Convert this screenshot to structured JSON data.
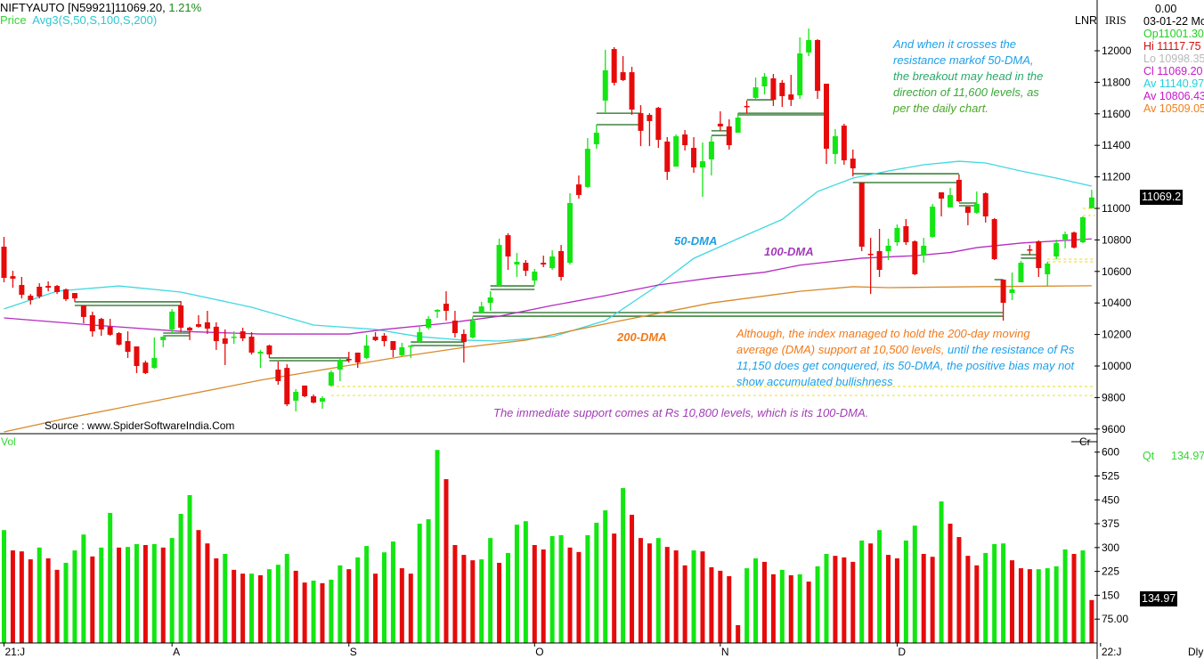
{
  "header": {
    "symbol": "NIFTYAUTO [N59921]11069.20,",
    "change": "1.21%",
    "price_label": "Price",
    "avg_label": "Avg3(S,50,S,100,S,200)"
  },
  "right_panel": {
    "lnr": "LNR",
    "iris": "IRIS",
    "value_top": "0.00",
    "date": "03-01-22 Mo",
    "open": "Op11001.30",
    "high": "Hi 11117.75",
    "low": "Lo 10998.35",
    "close": "Cl 11069.20",
    "av50": "Av 11140.97",
    "av100": "Av 10806.43",
    "av200": "Av 10509.05",
    "price_tag": "11069.2",
    "cr": "Cr",
    "qt_label": "Qt",
    "qt_value": "134.97",
    "vol_tag": "134.97",
    "dly": "Dly"
  },
  "source": "Source : www.SpiderSoftwareIndia.Com",
  "vol_label": "Vol",
  "annotations": {
    "dma50": "50-DMA",
    "dma100": "100-DMA",
    "dma200": "200-DMA",
    "top_right": [
      "And when it crosses the",
      "resistance markof 50-DMA,",
      "the breakout may head in the",
      "direction of 11,600 levels, as",
      "per the daily chart."
    ],
    "support_orange_1": "Although, the index managed to hold the 200-day moving",
    "support_orange_2": "average (DMA) support at 10,500 levels,",
    "support_blue_2": " until the resistance of Rs",
    "support_blue_3": "11,150 does get conquered, its 50-DMA, the positive bias may not",
    "support_blue_4": "show accumulated bullishness",
    "immediate": "The immediate support comes at Rs 10,800 levels, which is its 100-DMA."
  },
  "colors": {
    "up": "#13e613",
    "down": "#e60b0b",
    "dma50": "#3fd8e0",
    "dma100": "#b52cc0",
    "dma200": "#d88a2a",
    "level": "#1d6b1d",
    "support": "#f0e040"
  },
  "chart_data": {
    "type": "candlestick",
    "title": "NIFTYAUTO [N59921]",
    "x_ticks": [
      {
        "index": 0,
        "label": "21:J"
      },
      {
        "index": 19,
        "label": "A"
      },
      {
        "index": 39,
        "label": "S"
      },
      {
        "index": 60,
        "label": "O"
      },
      {
        "index": 81,
        "label": "N"
      },
      {
        "index": 101,
        "label": "D"
      },
      {
        "index": 124,
        "label": "22:J"
      }
    ],
    "price_axis": {
      "ylim": [
        9600,
        12200
      ],
      "ticks": [
        12000,
        11800,
        11600,
        11400,
        11200,
        11000,
        10800,
        10600,
        10400,
        10200,
        10000,
        9800,
        9600
      ]
    },
    "volume_axis": {
      "ylim": [
        0,
        620
      ],
      "ticks": [
        "600",
        "525",
        "450",
        "375",
        "300",
        "225",
        "150",
        "75.00"
      ],
      "tick_values": [
        600,
        525,
        450,
        375,
        300,
        225,
        150,
        75
      ]
    },
    "ohlc": [
      [
        10757,
        10819,
        10531,
        10559
      ],
      [
        10570,
        10604,
        10497,
        10554
      ],
      [
        10514,
        10565,
        10429,
        10452
      ],
      [
        10446,
        10457,
        10390,
        10418
      ],
      [
        10503,
        10525,
        10429,
        10441
      ],
      [
        10508,
        10537,
        10474,
        10497
      ],
      [
        10508,
        10514,
        10457,
        10469
      ],
      [
        10486,
        10492,
        10412,
        10424
      ],
      [
        10463,
        10463,
        10407,
        10429
      ],
      [
        10384,
        10384,
        10271,
        10311
      ],
      [
        10322,
        10345,
        10186,
        10220
      ],
      [
        10299,
        10305,
        10192,
        10232
      ],
      [
        10249,
        10299,
        10192,
        10198
      ],
      [
        10209,
        10215,
        10130,
        10135
      ],
      [
        10158,
        10220,
        10051,
        10090
      ],
      [
        10124,
        10124,
        9955,
        10000
      ],
      [
        10022,
        10034,
        9949,
        9955
      ],
      [
        9988,
        10181,
        9983,
        10051
      ],
      [
        10164,
        10186,
        10119,
        10186
      ],
      [
        10232,
        10361,
        10209,
        10345
      ],
      [
        10384,
        10412,
        10215,
        10243
      ],
      [
        10243,
        10249,
        10164,
        10226
      ],
      [
        10265,
        10322,
        10243,
        10249
      ],
      [
        10277,
        10350,
        10203,
        10237
      ],
      [
        10249,
        10277,
        10102,
        10158
      ],
      [
        10175,
        10232,
        10006,
        10141
      ],
      [
        10181,
        10220,
        10141,
        10186
      ],
      [
        10220,
        10243,
        10158,
        10175
      ],
      [
        10186,
        10215,
        10073,
        10085
      ],
      [
        10079,
        10102,
        9988,
        10090
      ],
      [
        10130,
        10135,
        10051,
        10073
      ],
      [
        9977,
        10028,
        9881,
        9904
      ],
      [
        9988,
        10011,
        9746,
        9757
      ],
      [
        9780,
        9853,
        9712,
        9836
      ],
      [
        9876,
        9876,
        9802,
        9808
      ],
      [
        9808,
        9819,
        9763,
        9768
      ],
      [
        9774,
        9808,
        9729,
        9796
      ],
      [
        9876,
        9972,
        9870,
        9960
      ],
      [
        9977,
        10045,
        9904,
        10039
      ],
      [
        10045,
        10090,
        10022,
        10039
      ],
      [
        10085,
        10085,
        9988,
        10022
      ],
      [
        10051,
        10198,
        10045,
        10130
      ],
      [
        10186,
        10215,
        10158,
        10164
      ],
      [
        10192,
        10209,
        10124,
        10158
      ],
      [
        10158,
        10158,
        10056,
        10102
      ],
      [
        10068,
        10147,
        10062,
        10119
      ],
      [
        10124,
        10130,
        10051,
        10130
      ],
      [
        10152,
        10249,
        10147,
        10215
      ],
      [
        10243,
        10316,
        10232,
        10299
      ],
      [
        10345,
        10361,
        10305,
        10356
      ],
      [
        10395,
        10474,
        10288,
        10350
      ],
      [
        10288,
        10350,
        10181,
        10209
      ],
      [
        10203,
        10232,
        10022,
        10152
      ],
      [
        10181,
        10311,
        10175,
        10288
      ],
      [
        10339,
        10407,
        10333,
        10378
      ],
      [
        10401,
        10474,
        10350,
        10435
      ],
      [
        10508,
        10808,
        10503,
        10768
      ],
      [
        10830,
        10842,
        10610,
        10695
      ],
      [
        10644,
        10717,
        10565,
        10661
      ],
      [
        10655,
        10672,
        10570,
        10604
      ],
      [
        10542,
        10616,
        10514,
        10599
      ],
      [
        10655,
        10700,
        10627,
        10644
      ],
      [
        10621,
        10734,
        10610,
        10695
      ],
      [
        10729,
        10768,
        10542,
        10565
      ],
      [
        10655,
        11096,
        10644,
        11034
      ],
      [
        11152,
        11209,
        11062,
        11085
      ],
      [
        11136,
        11446,
        11130,
        11378
      ],
      [
        11407,
        11531,
        11378,
        11480
      ],
      [
        11684,
        12006,
        11604,
        11876
      ],
      [
        12011,
        12023,
        11780,
        11797
      ],
      [
        11864,
        11966,
        11808,
        11814
      ],
      [
        11864,
        11898,
        11593,
        11627
      ],
      [
        11604,
        11655,
        11395,
        11492
      ],
      [
        11593,
        11604,
        11395,
        11554
      ],
      [
        11638,
        11644,
        11384,
        11435
      ],
      [
        11424,
        11452,
        11181,
        11232
      ],
      [
        11265,
        11469,
        11265,
        11458
      ],
      [
        11469,
        11497,
        11367,
        11401
      ],
      [
        11384,
        11452,
        11226,
        11260
      ],
      [
        11260,
        11418,
        11073,
        11299
      ],
      [
        11311,
        11458,
        11209,
        11424
      ],
      [
        11537,
        11616,
        11492,
        11520
      ],
      [
        11520,
        11565,
        11373,
        11401
      ],
      [
        11480,
        11604,
        11480,
        11576
      ],
      [
        11650,
        11684,
        11604,
        11644
      ],
      [
        11701,
        11830,
        11689,
        11768
      ],
      [
        11774,
        11859,
        11723,
        11836
      ],
      [
        11825,
        11853,
        11650,
        11689
      ],
      [
        11797,
        11814,
        11644,
        11712
      ],
      [
        11723,
        11847,
        11650,
        11689
      ],
      [
        11717,
        12085,
        11695,
        11983
      ],
      [
        11989,
        12141,
        11966,
        12068
      ],
      [
        12068,
        12073,
        11695,
        11746
      ],
      [
        11791,
        11791,
        11282,
        11378
      ],
      [
        11345,
        11503,
        11282,
        11458
      ],
      [
        11525,
        11537,
        11277,
        11305
      ],
      [
        11316,
        11373,
        11203,
        11254
      ],
      [
        11164,
        11164,
        10729,
        10757
      ],
      [
        10712,
        10813,
        10457,
        10706
      ],
      [
        10729,
        10870,
        10565,
        10610
      ],
      [
        10729,
        10808,
        10672,
        10763
      ],
      [
        10785,
        10898,
        10763,
        10876
      ],
      [
        10887,
        10932,
        10768,
        10785
      ],
      [
        10791,
        10797,
        10576,
        10582
      ],
      [
        10700,
        10813,
        10655,
        10763
      ],
      [
        10819,
        11028,
        10813,
        11011
      ],
      [
        11102,
        11102,
        10949,
        11062
      ],
      [
        11006,
        11130,
        11006,
        11085
      ],
      [
        11181,
        11215,
        11039,
        11045
      ],
      [
        11011,
        11011,
        10893,
        10972
      ],
      [
        10972,
        11107,
        10966,
        11028
      ],
      [
        11096,
        11102,
        10910,
        10949
      ],
      [
        10932,
        10938,
        10672,
        10678
      ],
      [
        10548,
        10548,
        10288,
        10401
      ],
      [
        10463,
        10593,
        10418,
        10486
      ],
      [
        10531,
        10667,
        10531,
        10655
      ],
      [
        10740,
        10768,
        10706,
        10734
      ],
      [
        10791,
        10797,
        10565,
        10621
      ],
      [
        10582,
        10661,
        10508,
        10650
      ],
      [
        10695,
        10802,
        10678,
        10780
      ],
      [
        10802,
        10853,
        10746,
        10836
      ],
      [
        10847,
        10853,
        10746,
        10751
      ],
      [
        10785,
        10949,
        10780,
        10944
      ],
      [
        11001.3,
        11117.75,
        10998.35,
        11069.2
      ]
    ],
    "volume": [
      355,
      291,
      288,
      263,
      300,
      266,
      230,
      252,
      291,
      341,
      272,
      300,
      409,
      300,
      302,
      311,
      308,
      311,
      300,
      330,
      406,
      465,
      355,
      313,
      266,
      280,
      230,
      218,
      218,
      213,
      232,
      246,
      280,
      227,
      190,
      196,
      188,
      199,
      244,
      232,
      269,
      305,
      218,
      285,
      319,
      235,
      218,
      375,
      389,
      607,
      515,
      308,
      277,
      260,
      263,
      330,
      252,
      283,
      372,
      383,
      308,
      294,
      336,
      339,
      300,
      286,
      339,
      378,
      417,
      344,
      487,
      403,
      330,
      313,
      330,
      302,
      291,
      244,
      291,
      288,
      238,
      227,
      210,
      56,
      235,
      266,
      255,
      216,
      230,
      213,
      216,
      193,
      241,
      280,
      274,
      269,
      255,
      322,
      313,
      355,
      277,
      266,
      322,
      369,
      280,
      271,
      445,
      375,
      333,
      274,
      244,
      283,
      311,
      313,
      260,
      235,
      232,
      232,
      235,
      241,
      294,
      280,
      291,
      134.97
    ],
    "volume_colors": [
      "GRRRGRRGGG",
      "RGGRGGRGRG",
      "GGRRRGRRGR",
      "GGGRRGRGGR",
      "GGRGGRRGGG",
      "RRRRGGRGGG",
      "RRG",
      "GRRGGGR",
      "GRRRGRRRGR",
      "RRRRGGRRGR",
      "GRGGRRRGRG",
      "RRGGRRGRRR",
      "RGGGRRRGGG",
      "GRGR"
    ],
    "moving_averages": [
      {
        "name": "50-DMA",
        "color": "#3fd8e0",
        "points": [
          [
            0,
            10362
          ],
          [
            6,
            10475
          ],
          [
            13,
            10508
          ],
          [
            20,
            10469
          ],
          [
            28,
            10373
          ],
          [
            35,
            10260
          ],
          [
            42,
            10232
          ],
          [
            47,
            10186
          ],
          [
            52,
            10164
          ],
          [
            56,
            10158
          ],
          [
            62,
            10186
          ],
          [
            68,
            10288
          ],
          [
            74,
            10514
          ],
          [
            78,
            10683
          ],
          [
            83,
            10808
          ],
          [
            88,
            10930
          ],
          [
            92,
            11107
          ],
          [
            96,
            11192
          ],
          [
            100,
            11237
          ],
          [
            104,
            11277
          ],
          [
            108,
            11299
          ],
          [
            111,
            11288
          ],
          [
            115,
            11237
          ],
          [
            119,
            11192
          ],
          [
            123,
            11140.97
          ]
        ]
      },
      {
        "name": "100-DMA",
        "color": "#b52cc0",
        "points": [
          [
            0,
            10305
          ],
          [
            10,
            10260
          ],
          [
            20,
            10220
          ],
          [
            29,
            10203
          ],
          [
            39,
            10203
          ],
          [
            43,
            10232
          ],
          [
            50,
            10271
          ],
          [
            56,
            10316
          ],
          [
            62,
            10384
          ],
          [
            68,
            10446
          ],
          [
            74,
            10514
          ],
          [
            80,
            10559
          ],
          [
            86,
            10595
          ],
          [
            90,
            10640
          ],
          [
            97,
            10684
          ],
          [
            103,
            10700
          ],
          [
            107,
            10720
          ],
          [
            110,
            10751
          ],
          [
            115,
            10780
          ],
          [
            123,
            10806.43
          ]
        ]
      },
      {
        "name": "200-DMA",
        "color": "#d88a2a",
        "points": [
          [
            0,
            9582
          ],
          [
            7,
            9667
          ],
          [
            29,
            9910
          ],
          [
            45,
            10060
          ],
          [
            52,
            10118
          ],
          [
            59,
            10164
          ],
          [
            70,
            10290
          ],
          [
            80,
            10400
          ],
          [
            90,
            10474
          ],
          [
            96,
            10503
          ],
          [
            100,
            10497
          ],
          [
            110,
            10503
          ],
          [
            123,
            10509.05
          ]
        ]
      }
    ],
    "levels": [
      [
        8,
        20,
        10407
      ],
      [
        8,
        20,
        10384
      ],
      [
        18,
        21,
        10209
      ],
      [
        18,
        21,
        10192
      ],
      [
        30,
        39,
        10051
      ],
      [
        30,
        39,
        10034
      ],
      [
        46,
        52,
        10152
      ],
      [
        46,
        52,
        10130
      ],
      [
        53,
        113,
        10339
      ],
      [
        53,
        113,
        10316
      ],
      [
        55,
        60,
        10508
      ],
      [
        55,
        60,
        10486
      ],
      [
        67,
        72,
        11604
      ],
      [
        67,
        72,
        11531
      ],
      [
        80,
        82,
        11492
      ],
      [
        80,
        82,
        11463
      ],
      [
        84,
        87,
        11689
      ],
      [
        83,
        93,
        11604
      ],
      [
        83,
        93,
        11593
      ],
      [
        96,
        108,
        11220
      ],
      [
        96,
        108,
        11164
      ],
      [
        108,
        110,
        11034
      ],
      [
        108,
        110,
        11017
      ],
      [
        112,
        113,
        10548
      ],
      [
        115,
        117,
        10706
      ],
      [
        115,
        117,
        10684
      ]
    ],
    "support_levels": [
      [
        37,
        123,
        9870
      ],
      [
        37,
        123,
        9813
      ],
      [
        118,
        123,
        10678
      ],
      [
        118,
        123,
        10661
      ],
      [
        122,
        123,
        11000
      ],
      [
        122,
        123,
        10955
      ]
    ]
  }
}
